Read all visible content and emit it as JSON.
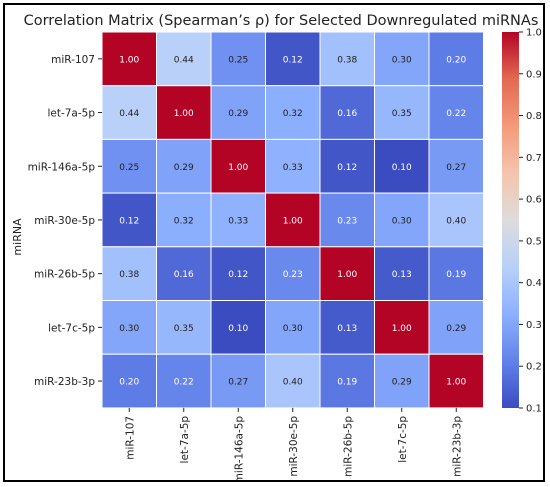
{
  "chart_data": {
    "type": "heatmap",
    "title": "Correlation Matrix (Spearman’s ρ) for Selected Downregulated miRNAs",
    "xlabel": "",
    "ylabel": "miRNA",
    "row_labels": [
      "miR-107",
      "let-7a-5p",
      "miR-146a-5p",
      "miR-30e-5p",
      "miR-26b-5p",
      "let-7c-5p",
      "miR-23b-3p"
    ],
    "col_labels": [
      "miR-107",
      "let-7a-5p",
      "miR-146a-5p",
      "miR-30e-5p",
      "miR-26b-5p",
      "let-7c-5p",
      "miR-23b-3p"
    ],
    "values": [
      [
        1.0,
        0.44,
        0.25,
        0.12,
        0.38,
        0.3,
        0.2
      ],
      [
        0.44,
        1.0,
        0.29,
        0.32,
        0.16,
        0.35,
        0.22
      ],
      [
        0.25,
        0.29,
        1.0,
        0.33,
        0.12,
        0.1,
        0.27
      ],
      [
        0.12,
        0.32,
        0.33,
        1.0,
        0.23,
        0.3,
        0.4
      ],
      [
        0.38,
        0.16,
        0.12,
        0.23,
        1.0,
        0.13,
        0.19
      ],
      [
        0.3,
        0.35,
        0.1,
        0.3,
        0.13,
        1.0,
        0.29
      ],
      [
        0.2,
        0.22,
        0.27,
        0.4,
        0.19,
        0.29,
        1.0
      ]
    ],
    "value_format": "0.00",
    "colormap": "coolwarm",
    "vmin": 0.1,
    "vmax": 1.0,
    "colorbar_ticks": [
      "0.1",
      "0.2",
      "0.3",
      "0.4",
      "0.5",
      "0.6",
      "0.7",
      "0.8",
      "0.9",
      "1.0"
    ],
    "colorbar_stops": [
      "#3b4cc0",
      "#6282ea",
      "#8db0fe",
      "#b8d0f9",
      "#dddcdc",
      "#f5c4ac",
      "#f49a7b",
      "#e26952",
      "#b40426"
    ],
    "grid_line_color": "#ffffff"
  }
}
